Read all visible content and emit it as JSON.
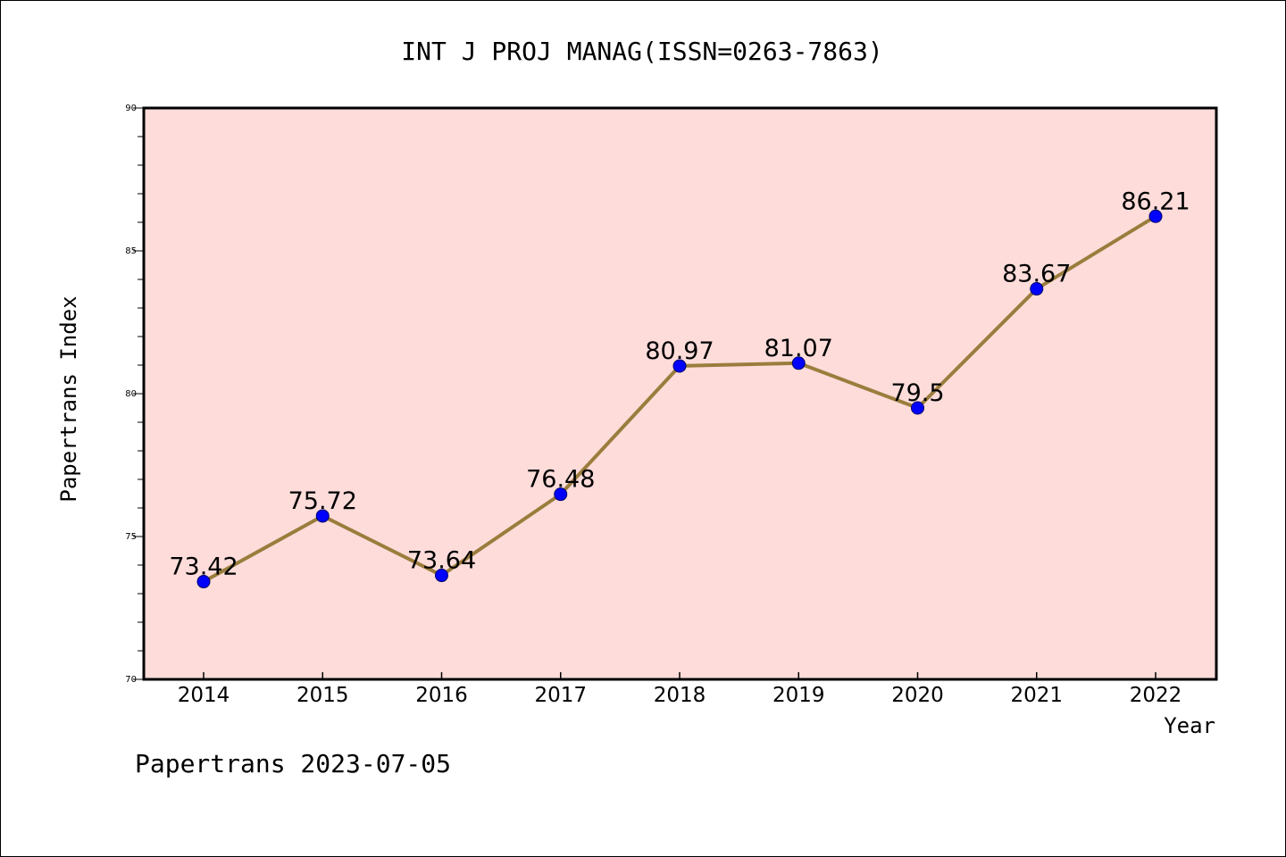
{
  "chart_data": {
    "type": "line",
    "title": "INT J PROJ MANAG(ISSN=0263-7863)",
    "xlabel": "Year",
    "ylabel": "Papertrans Index",
    "categories": [
      "2014",
      "2015",
      "2016",
      "2017",
      "2018",
      "2019",
      "2020",
      "2021",
      "2022"
    ],
    "values": [
      73.42,
      75.72,
      73.64,
      76.48,
      80.97,
      81.07,
      79.5,
      83.67,
      86.21
    ],
    "data_labels": [
      "73.42",
      "75.72",
      "73.64",
      "76.48",
      "80.97",
      "81.07",
      "79.5",
      "83.67",
      "86.21"
    ],
    "ylim": [
      70,
      90
    ],
    "yticks": [
      70,
      75,
      80,
      85,
      90
    ],
    "grid": false,
    "plot_background": "#fddcda",
    "line_color": "#9a7d3c",
    "marker_color": "#0000ff"
  },
  "footer": "Papertrans 2023-07-05"
}
